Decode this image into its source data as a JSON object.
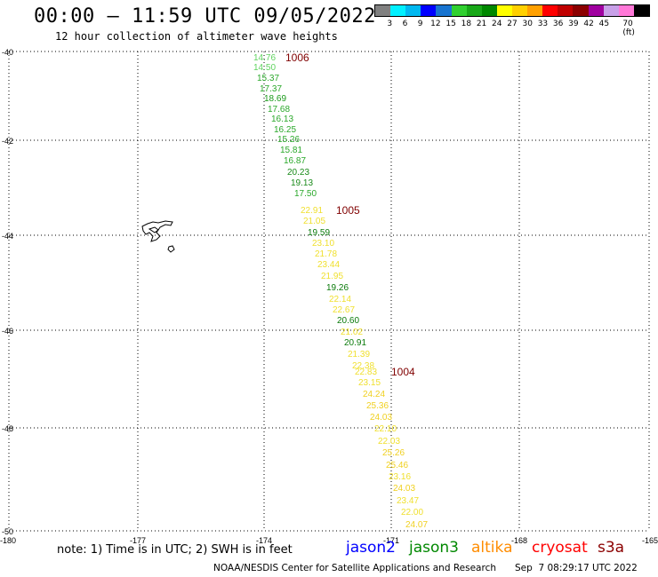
{
  "header": {
    "title": "00:00 – 11:59 UTC 09/05/2022",
    "subtitle": "12 hour collection of altimeter wave heights"
  },
  "scale": {
    "colors": [
      "#808080",
      "#00f0ff",
      "#00b8f0",
      "#0000ff",
      "#1874d0",
      "#30d030",
      "#18a818",
      "#008800",
      "#ffff00",
      "#ffd000",
      "#ffa000",
      "#ff0000",
      "#c00000",
      "#8b0000",
      "#a000a0",
      "#c8a0e8",
      "#ff78d8",
      "#000000"
    ],
    "labels": [
      "3",
      "6",
      "9",
      "12",
      "15",
      "18",
      "21",
      "24",
      "27",
      "30",
      "33",
      "36",
      "39",
      "42",
      "45",
      "70 (ft)"
    ]
  },
  "axes": {
    "lat_labels": [
      "-40",
      "-42",
      "-44",
      "-46",
      "-48",
      "-50"
    ],
    "lon_labels": [
      "-180",
      "-177",
      "-174",
      "-171",
      "-168",
      "-165"
    ]
  },
  "track": [
    {
      "v": "14.76",
      "c": "#5fd35f"
    },
    {
      "v": "14.50",
      "c": "#5fd35f"
    },
    {
      "v": "15.37",
      "c": "#2aa82a"
    },
    {
      "v": "17.37",
      "c": "#2aa82a"
    },
    {
      "v": "18.69",
      "c": "#1a9a1a"
    },
    {
      "v": "17.68",
      "c": "#2aa82a"
    },
    {
      "v": "16.13",
      "c": "#2aa82a"
    },
    {
      "v": "16.25",
      "c": "#2aa82a"
    },
    {
      "v": "15.26",
      "c": "#2aa82a"
    },
    {
      "v": "15.81",
      "c": "#2aa82a"
    },
    {
      "v": "16.87",
      "c": "#2aa82a"
    },
    {
      "v": "20.23",
      "c": "#1a8a1a"
    },
    {
      "v": "19.13",
      "c": "#1a8a1a"
    },
    {
      "v": "17.50",
      "c": "#2aa82a"
    },
    {
      "v": "22.91",
      "c": "#f0e030"
    },
    {
      "v": "21.05",
      "c": "#f0e030"
    },
    {
      "v": "19.59",
      "c": "#0a7a0a"
    },
    {
      "v": "23.10",
      "c": "#f0e030"
    },
    {
      "v": "21.78",
      "c": "#f0e030"
    },
    {
      "v": "23.44",
      "c": "#f0e030"
    },
    {
      "v": "21.95",
      "c": "#f0e030"
    },
    {
      "v": "19.26",
      "c": "#0a7a0a"
    },
    {
      "v": "22.14",
      "c": "#f0e030"
    },
    {
      "v": "22.67",
      "c": "#f0e030"
    },
    {
      "v": "20.60",
      "c": "#0a7a0a"
    },
    {
      "v": "21.02",
      "c": "#f0e030"
    },
    {
      "v": "20.91",
      "c": "#0a7a0a"
    },
    {
      "v": "21.39",
      "c": "#f0e030"
    },
    {
      "v": "22.38",
      "c": "#f0e030"
    },
    {
      "v": "22.83",
      "c": "#f0e030"
    },
    {
      "v": "23.15",
      "c": "#f0e030"
    },
    {
      "v": "24.24",
      "c": "#f0d020"
    },
    {
      "v": "25.36",
      "c": "#f0d020"
    },
    {
      "v": "24.03",
      "c": "#f0d020"
    },
    {
      "v": "22.10",
      "c": "#f0e030"
    },
    {
      "v": "22.03",
      "c": "#f0e030"
    },
    {
      "v": "25.26",
      "c": "#f0d020"
    },
    {
      "v": "25.46",
      "c": "#f0d020"
    },
    {
      "v": "23.16",
      "c": "#f0e030"
    },
    {
      "v": "24.03",
      "c": "#f0d020"
    },
    {
      "v": "23.47",
      "c": "#f0e030"
    },
    {
      "v": "22.00",
      "c": "#f0e030"
    },
    {
      "v": "24.07",
      "c": "#f0d020"
    }
  ],
  "pressure_labels": [
    "1006",
    "1005",
    "1004"
  ],
  "footer": {
    "note": "note: 1) Time is in UTC; 2) SWH is in feet",
    "satellites": [
      {
        "name": "jason2",
        "color": "#0000ff"
      },
      {
        "name": "jason3",
        "color": "#008800"
      },
      {
        "name": "altika",
        "color": "#ff8c00"
      },
      {
        "name": "cryosat",
        "color": "#ff0000"
      },
      {
        "name": "s3a",
        "color": "#8b0000"
      }
    ],
    "credit": "NOAA/NESDIS Center for Satellite Applications and Research",
    "timestamp": "Sep  7 08:29:17 UTC 2022"
  },
  "colors": {
    "pressure": "#800000",
    "grid": "#000000"
  }
}
